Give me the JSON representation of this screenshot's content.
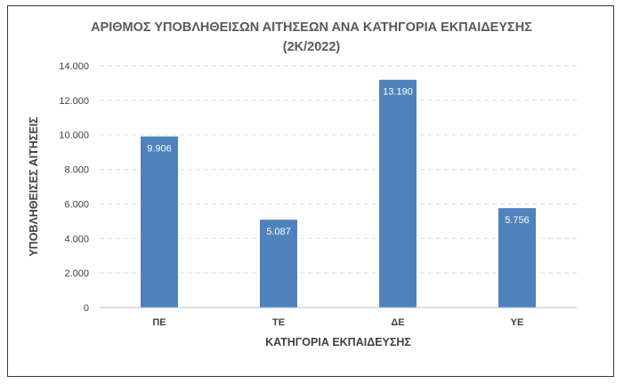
{
  "chart_data": {
    "type": "bar",
    "title": "ΑΡΙΘΜΟΣ ΥΠΟΒΛΗΘΕΙΣΩΝ ΑΙΤΗΣΕΩΝ ΑΝΑ ΚΑΤΗΓΟΡΙΑ ΕΚΠΑΙΔΕΥΣΗΣ",
    "subtitle": "(2Κ/2022)",
    "xlabel": "ΚΑΤΗΓΟΡΙΑ ΕΚΠΑΙΔΕΥΣΗΣ",
    "ylabel": "ΥΠΟΒΛΗΘΕΙΣΕΣ ΑΙΤΗΣΕΙΣ",
    "categories": [
      "ΠΕ",
      "ΤΕ",
      "ΔΕ",
      "ΥΕ"
    ],
    "values": [
      9906,
      5087,
      13190,
      5756
    ],
    "value_labels": [
      "9.906",
      "5.087",
      "13.190",
      "5.756"
    ],
    "ylim": [
      0,
      14000
    ],
    "yticks": [
      0,
      2000,
      4000,
      6000,
      8000,
      10000,
      12000,
      14000
    ],
    "ytick_labels": [
      "0",
      "2.000",
      "4.000",
      "6.000",
      "8.000",
      "10.000",
      "12.000",
      "14.000"
    ],
    "grid": true,
    "bar_color": "#4f81bd",
    "grid_color": "#d9d9d9"
  }
}
